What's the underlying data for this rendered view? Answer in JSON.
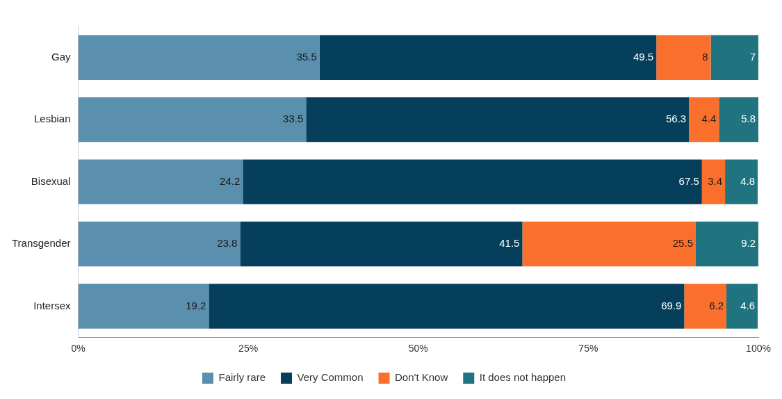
{
  "chart_data": {
    "type": "bar",
    "orientation": "horizontal",
    "stacked": true,
    "categories": [
      "Gay",
      "Lesbian",
      "Bisexual",
      "Transgender",
      "Intersex"
    ],
    "series": [
      {
        "name": "Fairly rare",
        "color": "#5a8fad",
        "values": [
          35.5,
          33.5,
          24.2,
          23.8,
          19.2
        ]
      },
      {
        "name": "Very Common",
        "color": "#063f5c",
        "values": [
          49.5,
          56.3,
          67.5,
          41.5,
          69.9
        ]
      },
      {
        "name": "Don't Know",
        "color": "#fb6f2c",
        "values": [
          8,
          4.4,
          3.4,
          25.5,
          6.2
        ]
      },
      {
        "name": "It does not happen",
        "color": "#1f7480",
        "values": [
          7,
          5.8,
          4.8,
          9.2,
          4.6
        ]
      }
    ],
    "xlim": [
      0,
      100
    ],
    "xticks": [
      {
        "value": 0,
        "label": "0%"
      },
      {
        "value": 25,
        "label": "25%"
      },
      {
        "value": 50,
        "label": "50%"
      },
      {
        "value": 75,
        "label": "75%"
      },
      {
        "value": 100,
        "label": "100%"
      }
    ],
    "data_labels": true,
    "legend": "bottom",
    "grid": false
  }
}
